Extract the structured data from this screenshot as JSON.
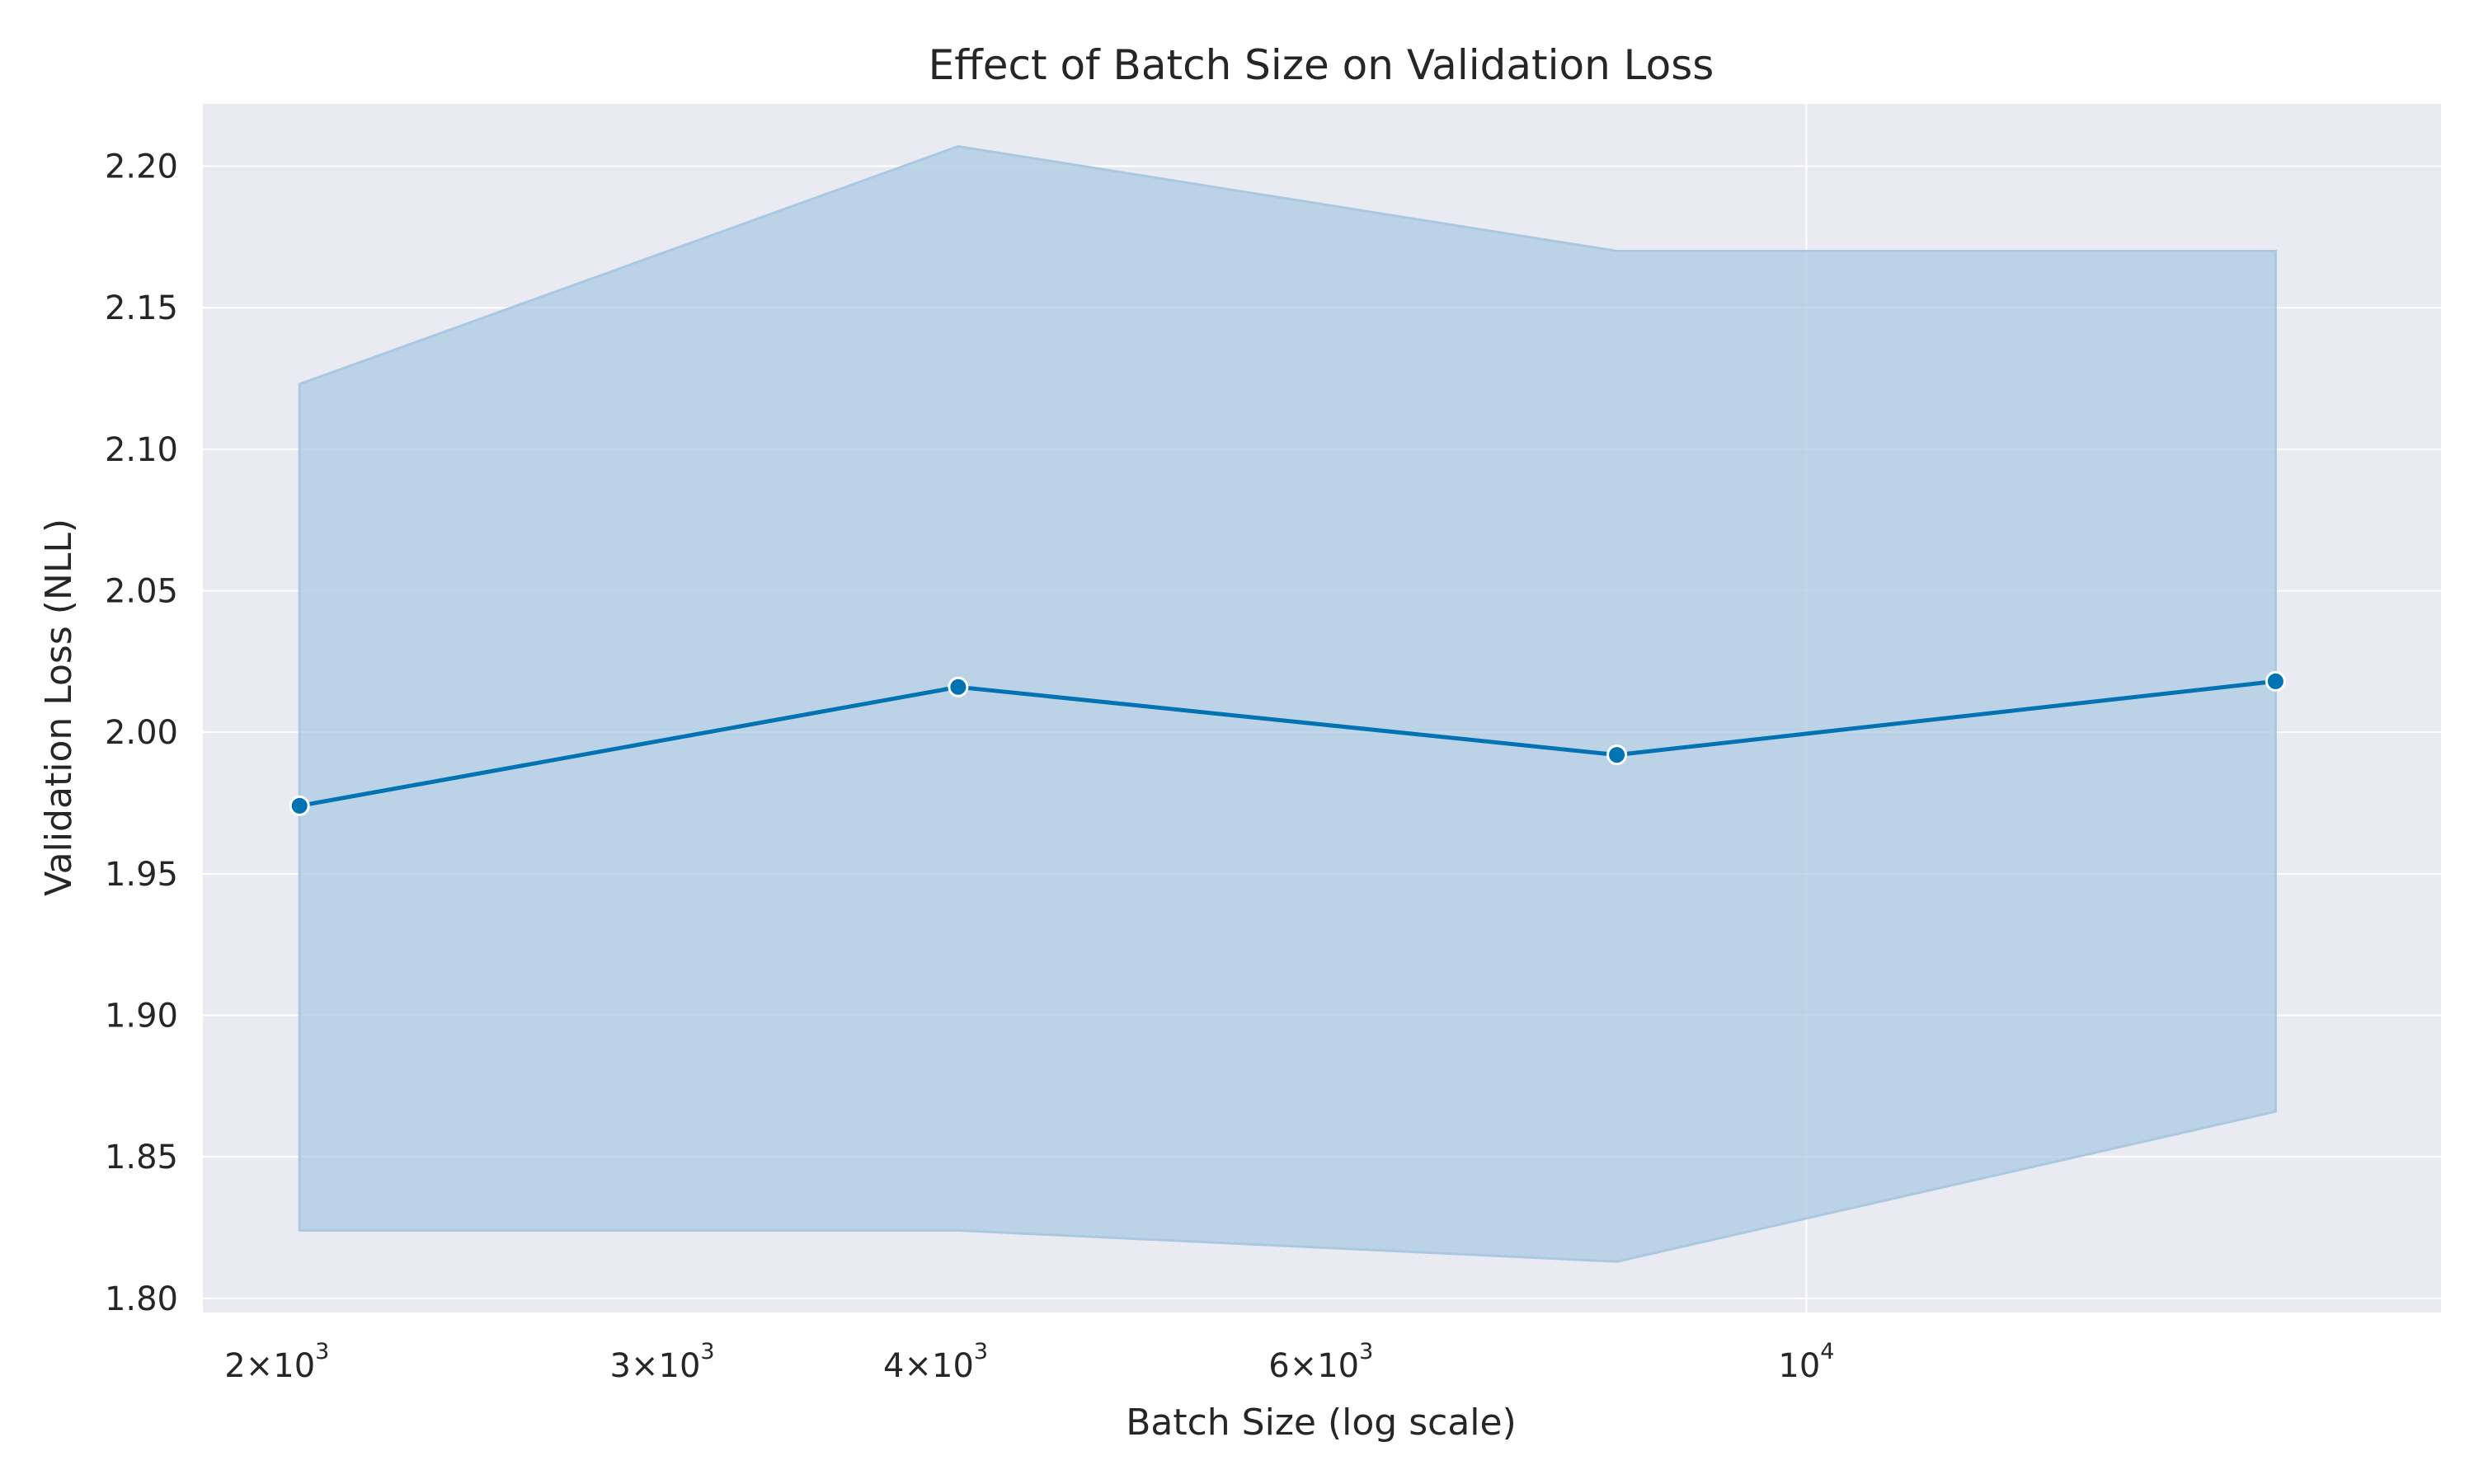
{
  "chart_data": {
    "type": "line",
    "title": "Effect of Batch Size on Validation Loss",
    "xlabel": "Batch Size (log scale)",
    "ylabel": "Validation Loss (NLL)",
    "x_scale": "log",
    "xlim": [
      1850,
      19500
    ],
    "ylim": [
      1.795,
      2.222
    ],
    "x_ticks": [
      {
        "value": 2000,
        "mantissa": "2",
        "base": "10",
        "exp": "3"
      },
      {
        "value": 3000,
        "mantissa": "3",
        "base": "10",
        "exp": "3"
      },
      {
        "value": 4000,
        "mantissa": "4",
        "base": "10",
        "exp": "3"
      },
      {
        "value": 6000,
        "mantissa": "6",
        "base": "10",
        "exp": "3"
      },
      {
        "value": 10000,
        "mantissa": "",
        "base": "10",
        "exp": "4"
      }
    ],
    "y_ticks": [
      {
        "value": 1.8,
        "label": "1.80"
      },
      {
        "value": 1.85,
        "label": "1.85"
      },
      {
        "value": 1.9,
        "label": "1.90"
      },
      {
        "value": 1.95,
        "label": "1.95"
      },
      {
        "value": 2.0,
        "label": "2.00"
      },
      {
        "value": 2.05,
        "label": "2.05"
      },
      {
        "value": 2.1,
        "label": "2.10"
      },
      {
        "value": 2.15,
        "label": "2.15"
      },
      {
        "value": 2.2,
        "label": "2.20"
      }
    ],
    "grid": true,
    "series": [
      {
        "x": [
          2048,
          4096,
          8192,
          16384
        ],
        "values": [
          1.974,
          2.016,
          1.992,
          2.018
        ],
        "ci_lower": [
          1.824,
          1.824,
          1.813,
          1.866
        ],
        "ci_upper": [
          2.123,
          2.207,
          2.17,
          2.17
        ],
        "color": "#0173b2",
        "band_color": "#a9c9e2",
        "marker": "circle"
      }
    ],
    "background_color": "#eaeaf2",
    "grid_color": "#ffffff"
  }
}
